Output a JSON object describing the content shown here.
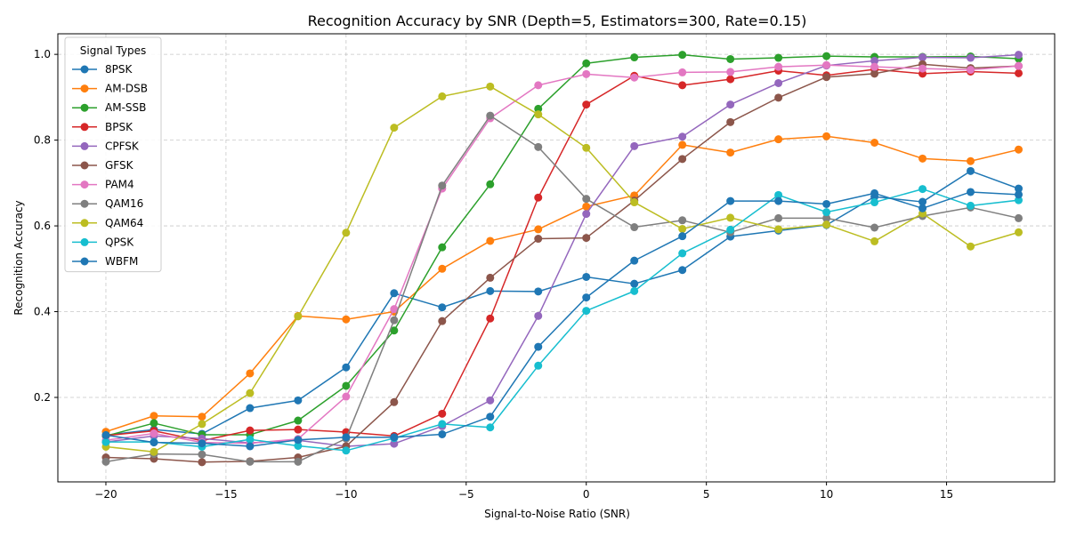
{
  "chart_data": {
    "type": "line",
    "title": "Recognition Accuracy by SNR (Depth=5, Estimators=300, Rate=0.15)",
    "xlabel": "Signal-to-Noise Ratio (SNR)",
    "ylabel": "Recognition Accuracy",
    "xlim": [
      -22,
      19.5
    ],
    "ylim": [
      0.003,
      1.048
    ],
    "xticks": [
      -20,
      -15,
      -10,
      -5,
      0,
      5,
      10,
      15
    ],
    "yticks": [
      0.2,
      0.4,
      0.6,
      0.8,
      1.0
    ],
    "xtick_labels": [
      "−20",
      "−15",
      "−10",
      "−5",
      "0",
      "5",
      "10",
      "15"
    ],
    "ytick_labels": [
      "0.2",
      "0.4",
      "0.6",
      "0.8",
      "1.0"
    ],
    "grid": true,
    "legend_title": "Signal Types",
    "legend_position": "top-left",
    "x": [
      -20,
      -18,
      -16,
      -14,
      -12,
      -10,
      -8,
      -6,
      -4,
      -2,
      0,
      2,
      4,
      6,
      8,
      10,
      12,
      14,
      16,
      18
    ],
    "series": [
      {
        "name": "8PSK",
        "color": "#1f77b4",
        "values": [
          0.112,
          0.125,
          0.115,
          0.175,
          0.193,
          0.27,
          0.443,
          0.41,
          0.448,
          0.447,
          0.481,
          0.465,
          0.497,
          0.575,
          0.589,
          0.602,
          0.668,
          0.656,
          0.728,
          0.687
        ]
      },
      {
        "name": "AM-DSB",
        "color": "#ff7f0e",
        "values": [
          0.12,
          0.157,
          0.155,
          0.256,
          0.39,
          0.382,
          0.4,
          0.5,
          0.565,
          0.592,
          0.645,
          0.671,
          0.789,
          0.771,
          0.802,
          0.809,
          0.794,
          0.757,
          0.751,
          0.778
        ]
      },
      {
        "name": "AM-SSB",
        "color": "#2ca02c",
        "values": [
          0.11,
          0.14,
          0.113,
          0.113,
          0.146,
          0.227,
          0.356,
          0.55,
          0.697,
          0.873,
          0.979,
          0.993,
          0.999,
          0.989,
          0.992,
          0.996,
          0.994,
          0.994,
          0.995,
          0.99
        ]
      },
      {
        "name": "BPSK",
        "color": "#d62728",
        "values": [
          0.111,
          0.122,
          0.099,
          0.123,
          0.125,
          0.119,
          0.11,
          0.162,
          0.384,
          0.666,
          0.883,
          0.95,
          0.928,
          0.942,
          0.962,
          0.951,
          0.965,
          0.955,
          0.96,
          0.956
        ]
      },
      {
        "name": "CPFSK",
        "color": "#9467bd",
        "values": [
          0.096,
          0.11,
          0.104,
          0.094,
          0.1,
          0.086,
          0.092,
          0.133,
          0.193,
          0.39,
          0.628,
          0.786,
          0.808,
          0.883,
          0.933,
          0.974,
          0.985,
          0.993,
          0.992,
          0.999
        ]
      },
      {
        "name": "GFSK",
        "color": "#8c564b",
        "values": [
          0.06,
          0.057,
          0.049,
          0.051,
          0.06,
          0.086,
          0.189,
          0.378,
          0.479,
          0.57,
          0.572,
          0.659,
          0.756,
          0.842,
          0.899,
          0.947,
          0.955,
          0.977,
          0.968,
          0.973
        ]
      },
      {
        "name": "PAM4",
        "color": "#e377c2",
        "values": [
          0.1,
          0.116,
          0.095,
          0.093,
          0.103,
          0.202,
          0.406,
          0.687,
          0.851,
          0.928,
          0.954,
          0.946,
          0.958,
          0.959,
          0.971,
          0.975,
          0.971,
          0.967,
          0.964,
          0.973
        ]
      },
      {
        "name": "QAM16",
        "color": "#7f7f7f",
        "values": [
          0.05,
          0.068,
          0.067,
          0.05,
          0.05,
          0.104,
          0.38,
          0.694,
          0.857,
          0.784,
          0.663,
          0.597,
          0.613,
          0.585,
          0.618,
          0.618,
          0.596,
          0.623,
          0.643,
          0.618
        ]
      },
      {
        "name": "QAM64",
        "color": "#bcbd22",
        "values": [
          0.085,
          0.073,
          0.138,
          0.21,
          0.389,
          0.584,
          0.829,
          0.902,
          0.925,
          0.86,
          0.782,
          0.655,
          0.593,
          0.619,
          0.592,
          0.603,
          0.564,
          0.629,
          0.552,
          0.585
        ]
      },
      {
        "name": "QPSK",
        "color": "#17becf",
        "values": [
          0.096,
          0.096,
          0.085,
          0.102,
          0.087,
          0.076,
          0.105,
          0.138,
          0.13,
          0.274,
          0.402,
          0.448,
          0.536,
          0.591,
          0.672,
          0.632,
          0.655,
          0.686,
          0.647,
          0.66
        ]
      },
      {
        "name": "WBFM",
        "color": "#1f77b4",
        "values": [
          0.112,
          0.095,
          0.093,
          0.086,
          0.101,
          0.107,
          0.107,
          0.114,
          0.155,
          0.318,
          0.433,
          0.519,
          0.576,
          0.658,
          0.658,
          0.651,
          0.676,
          0.641,
          0.679,
          0.673
        ]
      }
    ]
  }
}
